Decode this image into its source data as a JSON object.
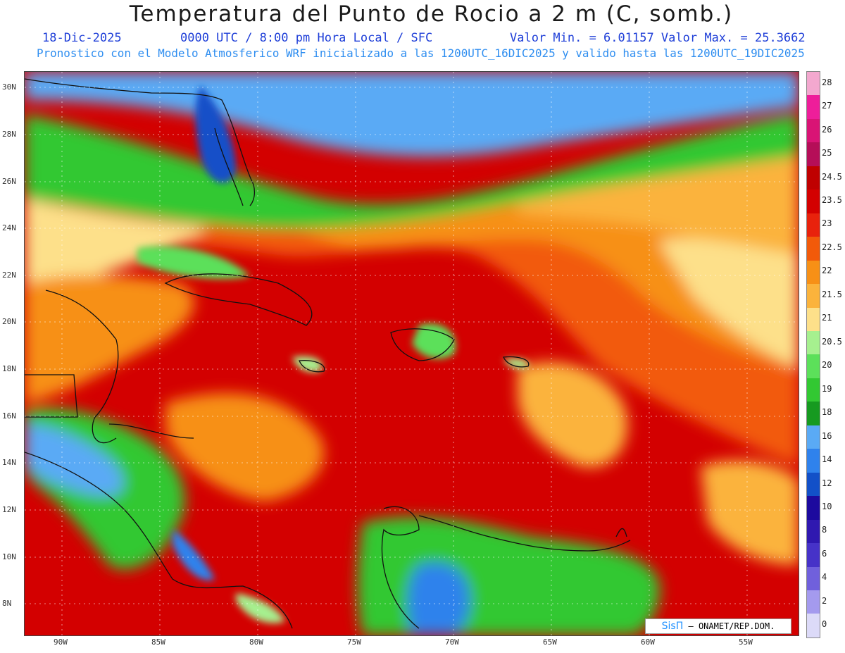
{
  "header": {
    "title": "Temperatura del Punto de Rocio a 2 m (C, somb.)",
    "date": "18-Dic-2025",
    "time_info": "0000 UTC / 8:00 pm Hora Local / SFC",
    "min_max": "Valor Min. = 6.01157  Valor Max. = 25.3662",
    "model_info": "Pronostico con el Modelo Atmosferico WRF inicializado a las 1200UTC_16DIC2025 y valido hasta las  1200UTC_19DIC2025"
  },
  "map": {
    "lat_ticks": [
      "30N",
      "28N",
      "26N",
      "24N",
      "22N",
      "20N",
      "18N",
      "16N",
      "14N",
      "12N",
      "10N",
      "8N"
    ],
    "lon_ticks": [
      "90W",
      "85W",
      "80W",
      "75W",
      "70W",
      "65W",
      "60W",
      "55W"
    ],
    "credit_logo": "SisΠ",
    "credit_text": "– ONAMET/REP.DOM."
  },
  "colorbar": {
    "labels": [
      "28",
      "27",
      "26",
      "25",
      "24.5",
      "23.5",
      "23",
      "22.5",
      "22",
      "21.5",
      "21",
      "20.5",
      "20",
      "19",
      "18",
      "16",
      "14",
      "12",
      "10",
      "8",
      "6",
      "4",
      "2",
      "0"
    ],
    "colors": [
      "#f3a8cf",
      "#ee1e9a",
      "#d91475",
      "#b50e58",
      "#bf0000",
      "#d30000",
      "#e8220c",
      "#f25a0a",
      "#f79016",
      "#fbb33c",
      "#fde08a",
      "#a6f08f",
      "#5ce05a",
      "#32c832",
      "#169a20",
      "#5aaaf5",
      "#2f82ec",
      "#1250c8",
      "#1c0a9e",
      "#2f18b0",
      "#4632c8",
      "#7060dc",
      "#a49aee",
      "#dcdaf8"
    ]
  }
}
